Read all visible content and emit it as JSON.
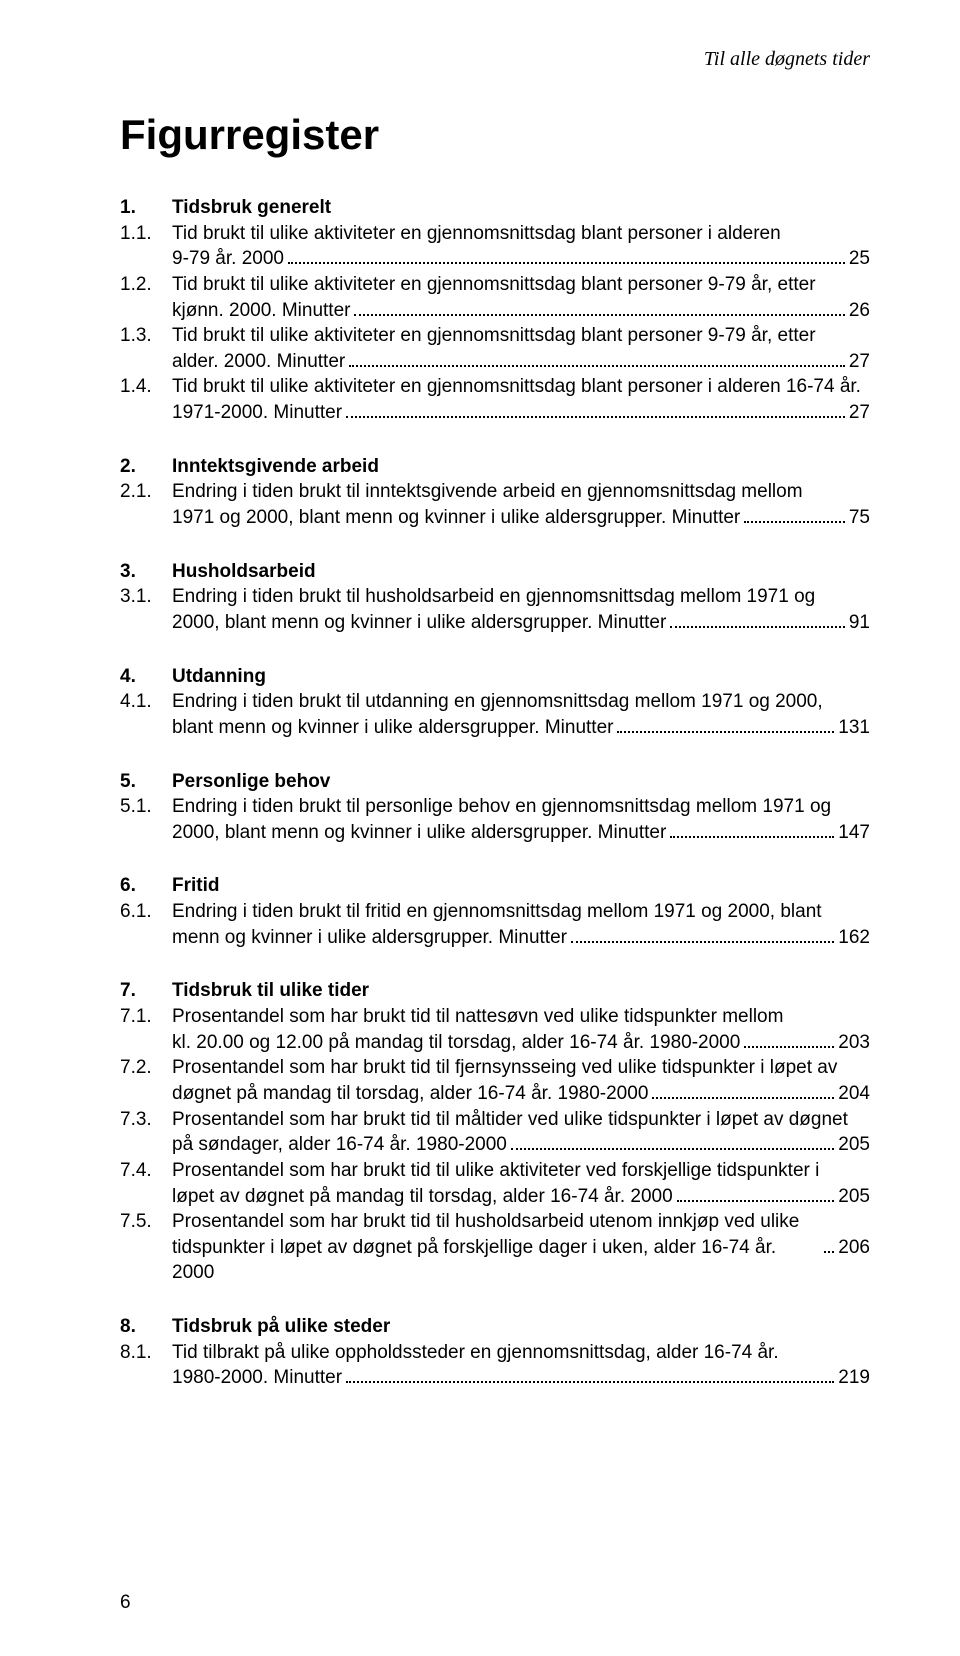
{
  "running_head": "Til alle døgnets tider",
  "page_title": "Figurregister",
  "page_number": "6",
  "typography": {
    "body_font": "Arial",
    "title_font": "Arial",
    "running_head_style": "italic serif",
    "title_fontsize_pt": 32,
    "body_fontsize_pt": 14,
    "text_color": "#000000",
    "background_color": "#ffffff",
    "leader_style": "dotted"
  },
  "sections": [
    {
      "num": "1.",
      "title": "Tidsbruk generelt",
      "entries": [
        {
          "num": "1.1.",
          "lines": [
            "Tid brukt til ulike aktiviteter en gjennomsnittsdag blant personer i alderen"
          ],
          "last": "9-79 år. 2000",
          "page": "25"
        },
        {
          "num": "1.2.",
          "lines": [
            "Tid brukt til ulike aktiviteter en gjennomsnittsdag blant personer 9-79 år, etter"
          ],
          "last": "kjønn. 2000. Minutter",
          "page": "26"
        },
        {
          "num": "1.3.",
          "lines": [
            "Tid brukt til ulike aktiviteter en gjennomsnittsdag blant personer 9-79 år, etter"
          ],
          "last": "alder. 2000. Minutter",
          "page": "27"
        },
        {
          "num": "1.4.",
          "lines": [
            "Tid brukt til ulike aktiviteter en gjennomsnittsdag blant personer i alderen 16-74 år."
          ],
          "last": "1971-2000. Minutter",
          "page": "27"
        }
      ]
    },
    {
      "num": "2.",
      "title": "Inntektsgivende arbeid",
      "entries": [
        {
          "num": "2.1.",
          "lines": [
            "Endring i tiden brukt til inntektsgivende arbeid en gjennomsnittsdag mellom"
          ],
          "last": "1971 og 2000, blant menn og kvinner i ulike aldersgrupper. Minutter",
          "page": "75"
        }
      ]
    },
    {
      "num": "3.",
      "title": "Husholdsarbeid",
      "entries": [
        {
          "num": "3.1.",
          "lines": [
            "Endring i tiden brukt til husholdsarbeid en gjennomsnittsdag mellom 1971 og"
          ],
          "last": "2000, blant menn og kvinner i ulike aldersgrupper. Minutter",
          "page": "91"
        }
      ]
    },
    {
      "num": "4.",
      "title": "Utdanning",
      "entries": [
        {
          "num": "4.1.",
          "lines": [
            "Endring i tiden brukt til utdanning en gjennomsnittsdag mellom 1971 og 2000,"
          ],
          "last": "blant menn og kvinner i ulike aldersgrupper. Minutter",
          "page": "131"
        }
      ]
    },
    {
      "num": "5.",
      "title": "Personlige behov",
      "entries": [
        {
          "num": "5.1.",
          "lines": [
            "Endring i tiden brukt til personlige behov en gjennomsnittsdag mellom 1971 og"
          ],
          "last": "2000, blant menn og kvinner i ulike aldersgrupper. Minutter",
          "page": "147"
        }
      ]
    },
    {
      "num": "6.",
      "title": "Fritid",
      "entries": [
        {
          "num": "6.1.",
          "lines": [
            "Endring i tiden brukt til fritid en gjennomsnittsdag mellom 1971 og 2000, blant"
          ],
          "last": "menn og kvinner i ulike aldersgrupper. Minutter",
          "page": "162"
        }
      ]
    },
    {
      "num": "7.",
      "title": "Tidsbruk til ulike tider",
      "entries": [
        {
          "num": "7.1.",
          "lines": [
            "Prosentandel som har brukt tid til nattesøvn ved ulike tidspunkter mellom"
          ],
          "last": "kl. 20.00 og 12.00 på mandag til torsdag, alder 16-74 år. 1980-2000",
          "page": "203"
        },
        {
          "num": "7.2.",
          "lines": [
            "Prosentandel som har brukt tid til fjernsynsseing ved ulike tidspunkter i løpet av"
          ],
          "last": "døgnet på mandag til torsdag, alder 16-74 år. 1980-2000",
          "page": "204"
        },
        {
          "num": "7.3.",
          "lines": [
            "Prosentandel som har brukt tid til måltider ved ulike tidspunkter i løpet av døgnet"
          ],
          "last": "på søndager, alder 16-74 år. 1980-2000",
          "page": "205"
        },
        {
          "num": "7.4.",
          "lines": [
            "Prosentandel som har brukt tid til ulike aktiviteter ved forskjellige tidspunkter i"
          ],
          "last": "løpet av døgnet på mandag til torsdag, alder 16-74 år. 2000",
          "page": "205"
        },
        {
          "num": "7.5.",
          "lines": [
            "Prosentandel som har brukt tid til husholdsarbeid utenom innkjøp ved ulike"
          ],
          "last": "tidspunkter i løpet av døgnet på forskjellige dager i uken, alder 16-74 år. 2000",
          "page": "206"
        }
      ]
    },
    {
      "num": "8.",
      "title": "Tidsbruk på ulike steder",
      "entries": [
        {
          "num": "8.1.",
          "lines": [
            "Tid tilbrakt på ulike oppholdssteder en gjennomsnittsdag, alder 16-74 år."
          ],
          "last": "1980-2000. Minutter",
          "page": "219"
        }
      ]
    }
  ]
}
